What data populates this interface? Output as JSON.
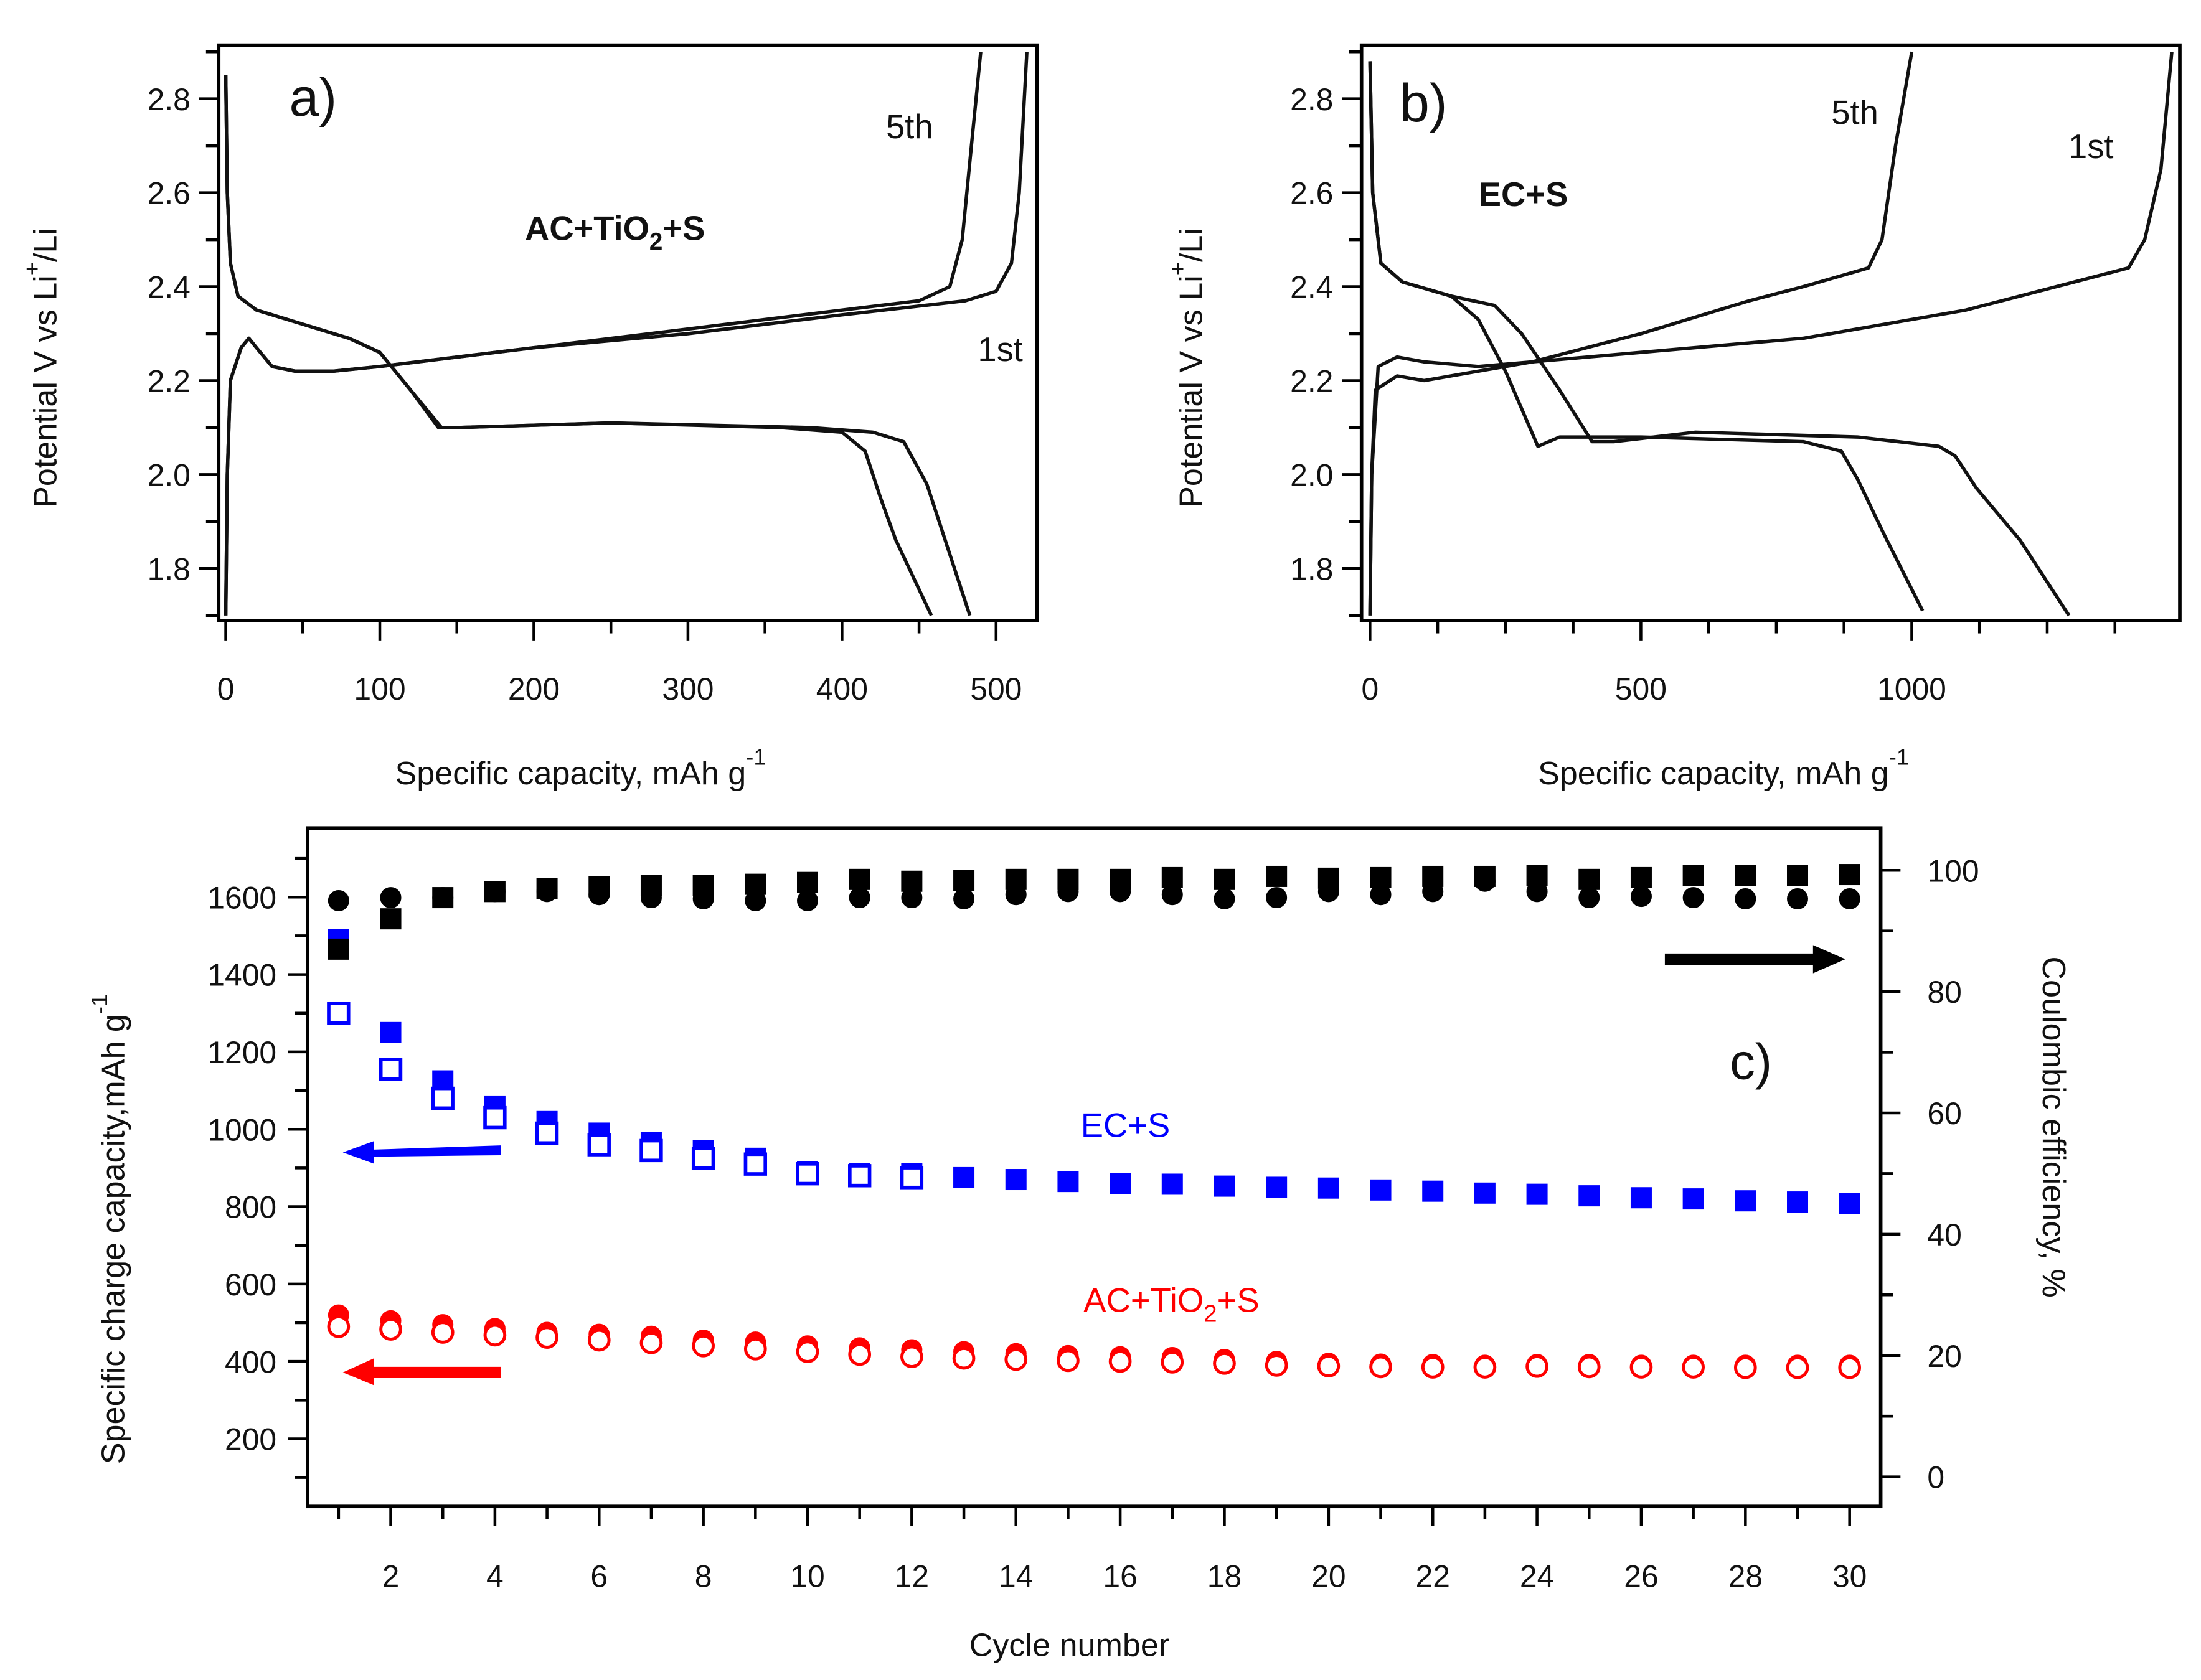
{
  "chart_data": [
    {
      "panel": "a",
      "type": "line",
      "panel_label": "a)",
      "annotation": {
        "main": "AC+TiO",
        "sub": "2",
        "tail": "+S"
      },
      "xlabel": {
        "text": "Specific capacity, mAh g",
        "sup": "-1"
      },
      "ylabel": {
        "pre": "Potential V vs Li",
        "sup": "+",
        "post": "/Li"
      },
      "xlim": [
        0,
        525
      ],
      "ylim": [
        1.7,
        2.9
      ],
      "xticks": [
        "0",
        "100",
        "200",
        "300",
        "400",
        "500"
      ],
      "yticks": [
        "1.8",
        "2.0",
        "2.2",
        "2.4",
        "2.6",
        "2.8"
      ],
      "curve_labels": {
        "fifth": "5th",
        "first": "1st"
      },
      "series": [
        {
          "name": "1st discharge",
          "points": [
            [
              0,
              2.85
            ],
            [
              1,
              2.6
            ],
            [
              3,
              2.45
            ],
            [
              8,
              2.38
            ],
            [
              20,
              2.35
            ],
            [
              50,
              2.32
            ],
            [
              80,
              2.29
            ],
            [
              100,
              2.26
            ],
            [
              120,
              2.18
            ],
            [
              138,
              2.1
            ],
            [
              150,
              2.1
            ],
            [
              250,
              2.11
            ],
            [
              380,
              2.1
            ],
            [
              420,
              2.09
            ],
            [
              440,
              2.07
            ],
            [
              455,
              1.98
            ],
            [
              465,
              1.88
            ],
            [
              483,
              1.7
            ]
          ]
        },
        {
          "name": "5th discharge",
          "points": [
            [
              0,
              2.85
            ],
            [
              1,
              2.6
            ],
            [
              3,
              2.45
            ],
            [
              8,
              2.38
            ],
            [
              20,
              2.35
            ],
            [
              50,
              2.32
            ],
            [
              80,
              2.29
            ],
            [
              100,
              2.26
            ],
            [
              120,
              2.18
            ],
            [
              140,
              2.1
            ],
            [
              150,
              2.1
            ],
            [
              250,
              2.11
            ],
            [
              360,
              2.1
            ],
            [
              400,
              2.09
            ],
            [
              415,
              2.05
            ],
            [
              425,
              1.95
            ],
            [
              435,
              1.86
            ],
            [
              458,
              1.7
            ]
          ]
        },
        {
          "name": "1st charge",
          "points": [
            [
              0,
              1.7
            ],
            [
              1,
              2.0
            ],
            [
              3,
              2.2
            ],
            [
              10,
              2.27
            ],
            [
              15,
              2.29
            ],
            [
              20,
              2.27
            ],
            [
              30,
              2.23
            ],
            [
              45,
              2.22
            ],
            [
              70,
              2.22
            ],
            [
              100,
              2.23
            ],
            [
              200,
              2.27
            ],
            [
              300,
              2.3
            ],
            [
              400,
              2.34
            ],
            [
              480,
              2.37
            ],
            [
              500,
              2.39
            ],
            [
              510,
              2.45
            ],
            [
              515,
              2.6
            ],
            [
              520,
              2.9
            ]
          ]
        },
        {
          "name": "5th charge",
          "points": [
            [
              0,
              1.7
            ],
            [
              1,
              2.0
            ],
            [
              3,
              2.2
            ],
            [
              10,
              2.27
            ],
            [
              15,
              2.29
            ],
            [
              20,
              2.27
            ],
            [
              30,
              2.23
            ],
            [
              45,
              2.22
            ],
            [
              70,
              2.22
            ],
            [
              100,
              2.23
            ],
            [
              200,
              2.27
            ],
            [
              300,
              2.31
            ],
            [
              400,
              2.35
            ],
            [
              450,
              2.37
            ],
            [
              470,
              2.4
            ],
            [
              478,
              2.5
            ],
            [
              484,
              2.7
            ],
            [
              490,
              2.9
            ]
          ]
        }
      ]
    },
    {
      "panel": "b",
      "type": "line",
      "panel_label": "b)",
      "annotation": {
        "main": "EC+S",
        "sub": "",
        "tail": ""
      },
      "xlabel": {
        "text": "Specific capacity, mAh g",
        "sup": "-1"
      },
      "ylabel": {
        "pre": "Potential V vs Li",
        "sup": "+",
        "post": "/Li"
      },
      "xlim": [
        0,
        1500
      ],
      "ylim": [
        1.7,
        2.9
      ],
      "xticks": [
        "0",
        "500",
        "1000"
      ],
      "yticks": [
        "1.8",
        "2.0",
        "2.2",
        "2.4",
        "2.6",
        "2.8"
      ],
      "curve_labels": {
        "fifth": "5th",
        "first": "1st"
      },
      "series": [
        {
          "name": "1st discharge",
          "points": [
            [
              0,
              2.88
            ],
            [
              5,
              2.6
            ],
            [
              20,
              2.45
            ],
            [
              60,
              2.41
            ],
            [
              150,
              2.38
            ],
            [
              230,
              2.36
            ],
            [
              280,
              2.3
            ],
            [
              350,
              2.18
            ],
            [
              410,
              2.07
            ],
            [
              450,
              2.07
            ],
            [
              600,
              2.09
            ],
            [
              900,
              2.08
            ],
            [
              1050,
              2.06
            ],
            [
              1080,
              2.04
            ],
            [
              1120,
              1.97
            ],
            [
              1200,
              1.86
            ],
            [
              1290,
              1.7
            ]
          ]
        },
        {
          "name": "5th discharge",
          "points": [
            [
              0,
              2.88
            ],
            [
              5,
              2.6
            ],
            [
              20,
              2.45
            ],
            [
              60,
              2.41
            ],
            [
              150,
              2.38
            ],
            [
              200,
              2.33
            ],
            [
              250,
              2.22
            ],
            [
              310,
              2.06
            ],
            [
              350,
              2.08
            ],
            [
              500,
              2.08
            ],
            [
              800,
              2.07
            ],
            [
              870,
              2.05
            ],
            [
              900,
              1.99
            ],
            [
              950,
              1.87
            ],
            [
              1020,
              1.71
            ]
          ]
        },
        {
          "name": "1st charge",
          "points": [
            [
              0,
              1.7
            ],
            [
              3,
              2.0
            ],
            [
              10,
              2.18
            ],
            [
              50,
              2.21
            ],
            [
              100,
              2.2
            ],
            [
              200,
              2.22
            ],
            [
              300,
              2.24
            ],
            [
              500,
              2.26
            ],
            [
              800,
              2.29
            ],
            [
              1100,
              2.35
            ],
            [
              1300,
              2.41
            ],
            [
              1400,
              2.44
            ],
            [
              1430,
              2.5
            ],
            [
              1460,
              2.65
            ],
            [
              1480,
              2.9
            ]
          ]
        },
        {
          "name": "5th charge",
          "points": [
            [
              0,
              1.7
            ],
            [
              3,
              2.0
            ],
            [
              15,
              2.23
            ],
            [
              50,
              2.25
            ],
            [
              100,
              2.24
            ],
            [
              200,
              2.23
            ],
            [
              300,
              2.24
            ],
            [
              500,
              2.3
            ],
            [
              700,
              2.37
            ],
            [
              800,
              2.4
            ],
            [
              920,
              2.44
            ],
            [
              945,
              2.5
            ],
            [
              970,
              2.7
            ],
            [
              1000,
              2.9
            ]
          ]
        }
      ]
    },
    {
      "panel": "c",
      "type": "scatter",
      "panel_label": "c)",
      "xlabel": "Cycle number",
      "ylabel": {
        "text": "Specific charge capacity,mAh g",
        "sup": "-1"
      },
      "y2label": "Coulombic efficiency, %",
      "xlim": [
        0.5,
        30.5
      ],
      "ylim": [
        0,
        1750
      ],
      "y2lim": [
        0,
        100
      ],
      "xticks": [
        "2",
        "4",
        "6",
        "8",
        "10",
        "12",
        "14",
        "16",
        "18",
        "20",
        "22",
        "24",
        "26",
        "28",
        "30"
      ],
      "yticks": [
        "200",
        "400",
        "600",
        "800",
        "1000",
        "1200",
        "1400",
        "1600"
      ],
      "y2ticks": [
        "0",
        "20",
        "40",
        "60",
        "80",
        "100"
      ],
      "labels": {
        "ec": "EC+S",
        "ac": {
          "main": "AC+TiO",
          "sub": "2",
          "tail": "+S"
        }
      },
      "colors": {
        "ec": "#0000ff",
        "ac": "#ff0000",
        "ce": "#000000"
      },
      "series": [
        {
          "name": "EC+S charge",
          "axis": "left",
          "marker": "square-filled",
          "color": "#0000ff",
          "values": [
            1490,
            1250,
            1125,
            1060,
            1020,
            990,
            965,
            945,
            925,
            890,
            885,
            885,
            875,
            870,
            865,
            860,
            858,
            853,
            850,
            848,
            843,
            840,
            835,
            832,
            828,
            823,
            820,
            815,
            812,
            808
          ]
        },
        {
          "name": "EC+S discharge",
          "axis": "left",
          "marker": "square-open",
          "color": "#0000ff",
          "values": [
            1300,
            1155,
            1080,
            1030,
            990,
            960,
            945,
            925,
            910,
            885,
            880,
            875
          ]
        },
        {
          "name": "AC+TiO2+S charge",
          "axis": "left",
          "marker": "circle-filled",
          "color": "#ff0000",
          "values": [
            520,
            505,
            495,
            485,
            475,
            470,
            465,
            455,
            450,
            440,
            435,
            430,
            425,
            420,
            415,
            412,
            410,
            405,
            400,
            395,
            393,
            392,
            390,
            392,
            392,
            390,
            390,
            390,
            390,
            390
          ]
        },
        {
          "name": "AC+TiO2+S discharge",
          "axis": "left",
          "marker": "circle-open",
          "color": "#ff0000",
          "values": [
            490,
            483,
            475,
            468,
            462,
            455,
            448,
            440,
            432,
            425,
            418,
            412,
            408,
            405,
            402,
            400,
            398,
            395,
            390,
            388,
            386,
            385,
            385,
            387,
            386,
            385,
            385,
            384,
            384,
            384
          ]
        },
        {
          "name": "EC+S coulombic efficiency",
          "axis": "right",
          "marker": "square-filled",
          "color": "#000000",
          "values": [
            87,
            92,
            95.5,
            96.5,
            97,
            97.3,
            97.5,
            97.5,
            97.7,
            98,
            98.5,
            98.2,
            98.3,
            98.5,
            98.5,
            98.5,
            98.8,
            98.5,
            99,
            98.7,
            98.8,
            99,
            99,
            99.2,
            98.5,
            98.8,
            99.2,
            99.2,
            99.2,
            99.3
          ]
        },
        {
          "name": "AC+TiO2+S coulombic efficiency",
          "axis": "right",
          "marker": "circle-filled",
          "color": "#000000",
          "values": [
            95,
            95.5,
            95.5,
            96.5,
            96.5,
            96,
            95.5,
            95.3,
            95,
            95,
            95.5,
            95.5,
            95.3,
            96,
            96.5,
            96.5,
            96,
            95.3,
            95.5,
            96.5,
            96,
            96.5,
            98.2,
            96.5,
            95.5,
            95.7,
            95.5,
            95.3,
            95.3,
            95.3
          ]
        }
      ]
    }
  ]
}
